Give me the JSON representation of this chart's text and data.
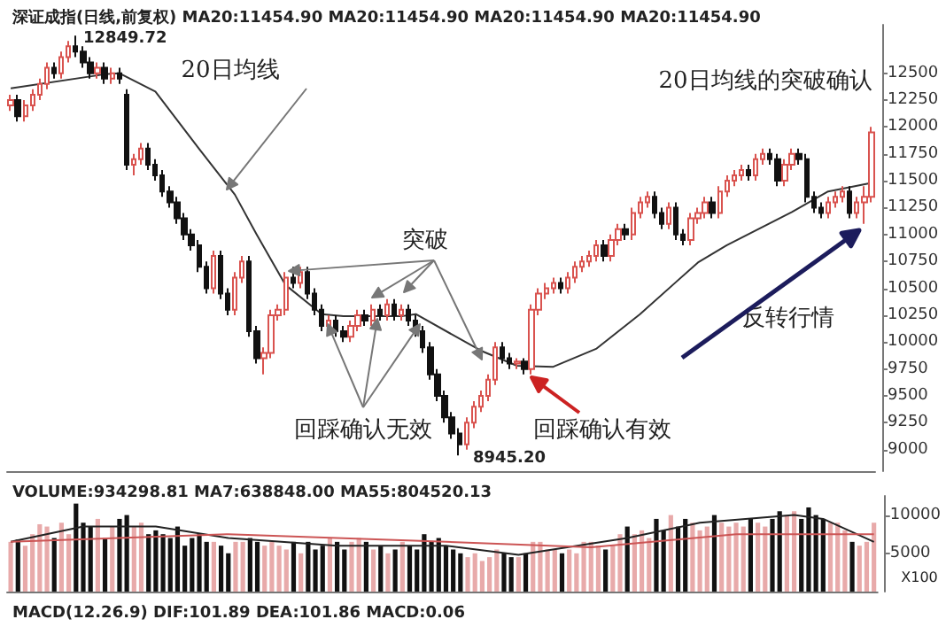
{
  "chart_data": [
    {
      "type": "candlestick",
      "title": "深证成指(日线,前复权) MA20:11454.90 MA20:11454.90 MA20:11454.90 MA20:11454.90",
      "categories": [
        null,
        null,
        null,
        null,
        null,
        null,
        null,
        null,
        null,
        null,
        null,
        null,
        null,
        null,
        null,
        null,
        null,
        null,
        null,
        null,
        null,
        null,
        null,
        null,
        null,
        null,
        null,
        null,
        null,
        null,
        null,
        null,
        null,
        null,
        null,
        null,
        null,
        null,
        null,
        null,
        null,
        null,
        null,
        null,
        null,
        null,
        null,
        null,
        null,
        null,
        null,
        null,
        null,
        null,
        null,
        null,
        null,
        null,
        null,
        null,
        null,
        null,
        null,
        null,
        null,
        null,
        null,
        null,
        null,
        null,
        null,
        null,
        null,
        null,
        null,
        null,
        null,
        null,
        null,
        null,
        null,
        null,
        null,
        null,
        null,
        null,
        null,
        null,
        null,
        null,
        null,
        null,
        null,
        null,
        null,
        null,
        null,
        null,
        null,
        null,
        null,
        null,
        null,
        null,
        null,
        null,
        null,
        null,
        null,
        null,
        null,
        null,
        null,
        null,
        null,
        null,
        null,
        null,
        null,
        null
      ],
      "ohlc": [
        [
          12200,
          12300,
          12150,
          12250
        ],
        [
          12250,
          12300,
          12050,
          12100
        ],
        [
          12100,
          12250,
          12050,
          12200
        ],
        [
          12200,
          12350,
          12150,
          12300
        ],
        [
          12300,
          12450,
          12250,
          12400
        ],
        [
          12400,
          12600,
          12350,
          12550
        ],
        [
          12550,
          12600,
          12450,
          12500
        ],
        [
          12500,
          12700,
          12450,
          12650
        ],
        [
          12650,
          12800,
          12600,
          12750
        ],
        [
          12750,
          12849.72,
          12650,
          12700
        ],
        [
          12700,
          12750,
          12550,
          12600
        ],
        [
          12600,
          12650,
          12450,
          12500
        ],
        [
          12500,
          12600,
          12450,
          12550
        ],
        [
          12550,
          12600,
          12400,
          12450
        ],
        [
          12450,
          12550,
          12400,
          12500
        ],
        [
          12500,
          12550,
          12400,
          12450
        ],
        [
          12300,
          12350,
          11600,
          11650
        ],
        [
          11650,
          11750,
          11550,
          11700
        ],
        [
          11700,
          11850,
          11650,
          11800
        ],
        [
          11800,
          11850,
          11600,
          11650
        ],
        [
          11650,
          11700,
          11500,
          11550
        ],
        [
          11550,
          11600,
          11350,
          11400
        ],
        [
          11400,
          11450,
          11250,
          11300
        ],
        [
          11300,
          11350,
          11100,
          11150
        ],
        [
          11150,
          11200,
          10950,
          11000
        ],
        [
          11000,
          11050,
          10850,
          10900
        ],
        [
          10900,
          10950,
          10650,
          10700
        ],
        [
          10700,
          10750,
          10450,
          10500
        ],
        [
          10500,
          10850,
          10450,
          10800
        ],
        [
          10800,
          10850,
          10400,
          10450
        ],
        [
          10450,
          10500,
          10250,
          10300
        ],
        [
          10300,
          10650,
          10250,
          10600
        ],
        [
          10600,
          10800,
          10550,
          10750
        ],
        [
          10750,
          10800,
          10050,
          10100
        ],
        [
          10100,
          10150,
          9800,
          9850
        ],
        [
          9850,
          9950,
          9700,
          9900
        ],
        [
          9900,
          10300,
          9850,
          10250
        ],
        [
          10250,
          10350,
          10200,
          10300
        ],
        [
          10300,
          10650,
          10250,
          10600
        ],
        [
          10600,
          10700,
          10500,
          10550
        ],
        [
          10550,
          10700,
          10500,
          10650
        ],
        [
          10650,
          10700,
          10400,
          10450
        ],
        [
          10450,
          10500,
          10250,
          10300
        ],
        [
          10300,
          10350,
          10100,
          10150
        ],
        [
          10150,
          10250,
          10100,
          10200
        ],
        [
          10200,
          10250,
          10050,
          10100
        ],
        [
          10100,
          10150,
          10000,
          10050
        ],
        [
          10050,
          10200,
          10000,
          10150
        ],
        [
          10150,
          10300,
          10100,
          10250
        ],
        [
          10250,
          10300,
          10150,
          10200
        ],
        [
          10200,
          10350,
          10150,
          10300
        ],
        [
          10300,
          10350,
          10200,
          10250
        ],
        [
          10250,
          10400,
          10200,
          10350
        ],
        [
          10350,
          10400,
          10200,
          10250
        ],
        [
          10250,
          10350,
          10200,
          10300
        ],
        [
          10300,
          10350,
          10150,
          10200
        ],
        [
          10200,
          10250,
          10050,
          10100
        ],
        [
          10100,
          10150,
          9900,
          9950
        ],
        [
          9950,
          10000,
          9650,
          9700
        ],
        [
          9700,
          9750,
          9450,
          9500
        ],
        [
          9500,
          9550,
          9250,
          9300
        ],
        [
          9300,
          9350,
          9100,
          9150
        ],
        [
          9150,
          9200,
          8945.2,
          9050
        ],
        [
          9050,
          9300,
          9000,
          9250
        ],
        [
          9250,
          9450,
          9200,
          9400
        ],
        [
          9400,
          9550,
          9350,
          9500
        ],
        [
          9500,
          9700,
          9450,
          9650
        ],
        [
          9650,
          10000,
          9600,
          9950
        ],
        [
          9950,
          10000,
          9800,
          9850
        ],
        [
          9850,
          9900,
          9750,
          9800
        ],
        [
          9800,
          9850,
          9750,
          9820
        ],
        [
          9820,
          9850,
          9700,
          9750
        ],
        [
          9750,
          10350,
          9700,
          10300
        ],
        [
          10300,
          10500,
          10250,
          10450
        ],
        [
          10450,
          10550,
          10400,
          10500
        ],
        [
          10500,
          10600,
          10450,
          10550
        ],
        [
          10550,
          10600,
          10450,
          10500
        ],
        [
          10500,
          10650,
          10450,
          10600
        ],
        [
          10600,
          10750,
          10550,
          10700
        ],
        [
          10700,
          10800,
          10650,
          10750
        ],
        [
          10750,
          10850,
          10700,
          10800
        ],
        [
          10800,
          10950,
          10750,
          10900
        ],
        [
          10900,
          10950,
          10750,
          10800
        ],
        [
          10800,
          11000,
          10750,
          10950
        ],
        [
          10950,
          11100,
          10900,
          11050
        ],
        [
          11050,
          11100,
          10950,
          11000
        ],
        [
          11000,
          11250,
          10950,
          11200
        ],
        [
          11200,
          11350,
          11150,
          11300
        ],
        [
          11300,
          11400,
          11250,
          11350
        ],
        [
          11350,
          11400,
          11150,
          11200
        ],
        [
          11200,
          11250,
          11050,
          11100
        ],
        [
          11100,
          11300,
          11050,
          11250
        ],
        [
          11250,
          11300,
          10950,
          11000
        ],
        [
          11000,
          11050,
          10900,
          10950
        ],
        [
          10950,
          11200,
          10900,
          11150
        ],
        [
          11150,
          11250,
          11100,
          11200
        ],
        [
          11200,
          11350,
          11150,
          11300
        ],
        [
          11300,
          11350,
          11150,
          11200
        ],
        [
          11200,
          11450,
          11150,
          11400
        ],
        [
          11400,
          11550,
          11350,
          11500
        ],
        [
          11500,
          11600,
          11450,
          11550
        ],
        [
          11550,
          11650,
          11500,
          11600
        ],
        [
          11600,
          11650,
          11500,
          11550
        ],
        [
          11550,
          11750,
          11500,
          11700
        ],
        [
          11700,
          11800,
          11650,
          11750
        ],
        [
          11750,
          11800,
          11650,
          11700
        ],
        [
          11700,
          11750,
          11450,
          11500
        ],
        [
          11500,
          11700,
          11450,
          11650
        ],
        [
          11650,
          11800,
          11600,
          11750
        ],
        [
          11750,
          11800,
          11650,
          11700
        ],
        [
          11700,
          11750,
          11300,
          11350
        ],
        [
          11350,
          11400,
          11200,
          11250
        ],
        [
          11250,
          11300,
          11150,
          11200
        ],
        [
          11200,
          11350,
          11150,
          11300
        ],
        [
          11300,
          11400,
          11250,
          11350
        ],
        [
          11350,
          11450,
          11300,
          11400
        ],
        [
          11400,
          11450,
          11150,
          11200
        ],
        [
          11200,
          11350,
          11150,
          11300
        ],
        [
          11300,
          11450,
          11100,
          11350
        ],
        [
          11350,
          12000,
          11300,
          11950
        ]
      ],
      "series": [
        {
          "type": "line",
          "color": "#333333",
          "values": [
            12360,
            null,
            null,
            null,
            null,
            null,
            null,
            null,
            null,
            null,
            null,
            null,
            null,
            12490,
            null,
            12500,
            null,
            null,
            null,
            null,
            12330,
            null,
            null,
            null,
            null,
            null,
            11800,
            null,
            null,
            null,
            null,
            11370,
            null,
            null,
            11000,
            null,
            null,
            null,
            10530,
            null,
            null,
            null,
            null,
            10260,
            null,
            null,
            10240,
            null,
            null,
            null,
            null,
            null,
            null,
            null,
            10240,
            null,
            10260,
            null,
            null,
            null,
            null,
            null,
            null,
            null,
            null,
            9920,
            null,
            null,
            null,
            null,
            9780,
            null,
            null,
            null,
            null,
            9770,
            null,
            null,
            null,
            null,
            null,
            9940,
            null,
            null,
            null,
            null,
            null,
            10260,
            null,
            null,
            null,
            null,
            null,
            null,
            null,
            10740,
            null,
            null,
            null,
            10900,
            null,
            null,
            null,
            null,
            null,
            null,
            null,
            null,
            11210,
            null,
            null,
            null,
            null,
            11400,
            null,
            null,
            null,
            null,
            null,
            11480
          ]
        }
      ],
      "ylim": [
        8800,
        12950
      ],
      "yticks": [
        9000,
        9250,
        9500,
        9750,
        10000,
        10250,
        10500,
        10750,
        11000,
        11250,
        11500,
        11750,
        12000,
        12250,
        12500
      ],
      "tick_labels": "y",
      "annotations": [
        "12849.72",
        "20日均线",
        "突破",
        "20日均线的突破确认",
        "回踩确认无效",
        "8945.20",
        "回踩确认有效",
        "反转行情"
      ]
    },
    {
      "type": "bar",
      "title": "VOLUME:934298.81 MA7:638848.00 MA55:804520.13",
      "categories": [
        null,
        null,
        null,
        null,
        null,
        null,
        null,
        null,
        null,
        null,
        null,
        null,
        null,
        null,
        null,
        null,
        null,
        null,
        null,
        null,
        null,
        null,
        null,
        null,
        null,
        null,
        null,
        null,
        null,
        null,
        null,
        null,
        null,
        null,
        null,
        null,
        null,
        null,
        null,
        null,
        null,
        null,
        null,
        null,
        null,
        null,
        null,
        null,
        null,
        null,
        null,
        null,
        null,
        null,
        null,
        null,
        null,
        null,
        null,
        null,
        null,
        null,
        null,
        null,
        null,
        null,
        null,
        null,
        null,
        null,
        null,
        null,
        null,
        null,
        null,
        null,
        null,
        null,
        null,
        null,
        null,
        null,
        null,
        null,
        null,
        null,
        null,
        null,
        null,
        null,
        null,
        null,
        null,
        null,
        null,
        null,
        null,
        null,
        null,
        null,
        null,
        null,
        null,
        null,
        null,
        null,
        null,
        null,
        null,
        null,
        null,
        null,
        null,
        null,
        null,
        null,
        null,
        null,
        null,
        null
      ],
      "series": [
        {
          "type": "bar",
          "values": [
            6500,
            6800,
            6000,
            7500,
            8800,
            8500,
            7000,
            9000,
            7500,
            11500,
            9000,
            8500,
            9500,
            7000,
            8500,
            9500,
            10000,
            8500,
            9000,
            7500,
            8000,
            7500,
            7000,
            8500,
            6000,
            7000,
            7500,
            6500,
            6500,
            6000,
            5000,
            6500,
            6500,
            7000,
            6500,
            6000,
            6500,
            6000,
            5500,
            6500,
            5000,
            6500,
            5500,
            6000,
            7000,
            6500,
            5500,
            6500,
            7000,
            6500,
            5500,
            6000,
            5000,
            5500,
            6500,
            6000,
            5500,
            7500,
            6500,
            7000,
            6000,
            5500,
            5000,
            4500,
            5000,
            4000,
            4500,
            5500,
            5000,
            4500,
            4500,
            5000,
            6500,
            6500,
            5500,
            5500,
            5000,
            5500,
            5000,
            6500,
            6500,
            6000,
            5500,
            6000,
            7500,
            8500,
            7500,
            8000,
            7000,
            9500,
            8000,
            10000,
            8500,
            9500,
            9000,
            8000,
            8500,
            10000,
            9000,
            8500,
            9000,
            8500,
            9500,
            9000,
            8500,
            9500,
            10500,
            10000,
            10500,
            9500,
            11000,
            10000,
            9500,
            9000,
            9000,
            8000,
            6500,
            6000,
            6500,
            9000
          ],
          "colors": [
            "#e8aaaa",
            "#111111",
            "#e8aaaa",
            "#e8aaaa",
            "#e8aaaa",
            "#e8aaaa",
            "#111111",
            "#e8aaaa",
            "#e8aaaa",
            "#111111",
            "#111111",
            "#111111",
            "#e8aaaa",
            "#111111",
            "#e8aaaa",
            "#111111",
            "#111111",
            "#e8aaaa",
            "#e8aaaa",
            "#111111",
            "#111111",
            "#111111",
            "#111111",
            "#111111",
            "#111111",
            "#111111",
            "#111111",
            "#111111",
            "#e8aaaa",
            "#111111",
            "#111111",
            "#e8aaaa",
            "#e8aaaa",
            "#111111",
            "#111111",
            "#e8aaaa",
            "#e8aaaa",
            "#e8aaaa",
            "#e8aaaa",
            "#111111",
            "#e8aaaa",
            "#111111",
            "#111111",
            "#111111",
            "#e8aaaa",
            "#111111",
            "#111111",
            "#e8aaaa",
            "#e8aaaa",
            "#111111",
            "#e8aaaa",
            "#111111",
            "#e8aaaa",
            "#111111",
            "#e8aaaa",
            "#111111",
            "#111111",
            "#111111",
            "#111111",
            "#111111",
            "#111111",
            "#111111",
            "#111111",
            "#e8aaaa",
            "#e8aaaa",
            "#e8aaaa",
            "#e8aaaa",
            "#e8aaaa",
            "#111111",
            "#111111",
            "#e8aaaa",
            "#111111",
            "#e8aaaa",
            "#e8aaaa",
            "#e8aaaa",
            "#e8aaaa",
            "#111111",
            "#e8aaaa",
            "#e8aaaa",
            "#e8aaaa",
            "#e8aaaa",
            "#e8aaaa",
            "#111111",
            "#e8aaaa",
            "#e8aaaa",
            "#111111",
            "#e8aaaa",
            "#e8aaaa",
            "#e8aaaa",
            "#111111",
            "#111111",
            "#e8aaaa",
            "#111111",
            "#111111",
            "#e8aaaa",
            "#e8aaaa",
            "#e8aaaa",
            "#111111",
            "#e8aaaa",
            "#e8aaaa",
            "#e8aaaa",
            "#e8aaaa",
            "#111111",
            "#e8aaaa",
            "#e8aaaa",
            "#111111",
            "#111111",
            "#e8aaaa",
            "#e8aaaa",
            "#111111",
            "#111111",
            "#111111",
            "#111111",
            "#e8aaaa",
            "#e8aaaa",
            "#e8aaaa",
            "#111111",
            "#e8aaaa",
            "#e8aaaa",
            "#e8aaaa"
          ]
        },
        {
          "type": "line",
          "color": "#222222",
          "values": [
            6500,
            null,
            null,
            null,
            null,
            null,
            null,
            null,
            null,
            null,
            8500,
            null,
            null,
            null,
            null,
            null,
            null,
            null,
            null,
            null,
            8500,
            null,
            null,
            null,
            null,
            null,
            null,
            null,
            null,
            null,
            7000,
            null,
            null,
            null,
            null,
            null,
            null,
            null,
            null,
            null,
            null,
            null,
            null,
            null,
            null,
            6000,
            null,
            null,
            null,
            null,
            null,
            null,
            null,
            null,
            null,
            null,
            null,
            null,
            null,
            null,
            6000,
            null,
            null,
            null,
            null,
            null,
            null,
            null,
            null,
            null,
            4800,
            null,
            null,
            null,
            null,
            null,
            null,
            null,
            null,
            null,
            null,
            null,
            null,
            null,
            null,
            7000,
            null,
            null,
            null,
            null,
            null,
            null,
            null,
            null,
            null,
            9000,
            null,
            null,
            null,
            null,
            null,
            null,
            null,
            null,
            null,
            null,
            null,
            null,
            10000,
            null,
            null,
            null,
            9500,
            null,
            null,
            null,
            null,
            null,
            null,
            6500
          ]
        },
        {
          "type": "line",
          "color": "#cc5555",
          "values": [
            6500,
            null,
            null,
            null,
            null,
            null,
            null,
            null,
            null,
            null,
            null,
            null,
            null,
            null,
            null,
            null,
            null,
            null,
            null,
            null,
            null,
            null,
            null,
            null,
            null,
            null,
            null,
            null,
            null,
            null,
            7500,
            null,
            null,
            null,
            null,
            null,
            null,
            null,
            null,
            null,
            null,
            null,
            null,
            null,
            null,
            null,
            null,
            null,
            null,
            null,
            null,
            null,
            null,
            null,
            null,
            null,
            null,
            null,
            null,
            null,
            6500,
            null,
            null,
            null,
            null,
            null,
            null,
            null,
            null,
            null,
            null,
            null,
            null,
            null,
            null,
            null,
            null,
            null,
            null,
            null,
            5800,
            null,
            null,
            null,
            null,
            null,
            null,
            null,
            null,
            null,
            null,
            null,
            null,
            null,
            null,
            null,
            null,
            null,
            null,
            null,
            7500,
            null,
            null,
            null,
            null,
            null,
            null,
            null,
            null,
            null,
            null,
            null,
            null,
            null,
            null,
            null,
            null,
            null,
            null,
            7500
          ]
        }
      ],
      "ylim": [
        0,
        12500
      ],
      "yticks": [
        5000,
        10000
      ],
      "tick_labels": "y",
      "annotations": [
        "X100"
      ]
    },
    {
      "type": "other",
      "title": "MACD(12.26.9) DIF:101.89 DEA:101.86 MACD:0.06"
    }
  ]
}
